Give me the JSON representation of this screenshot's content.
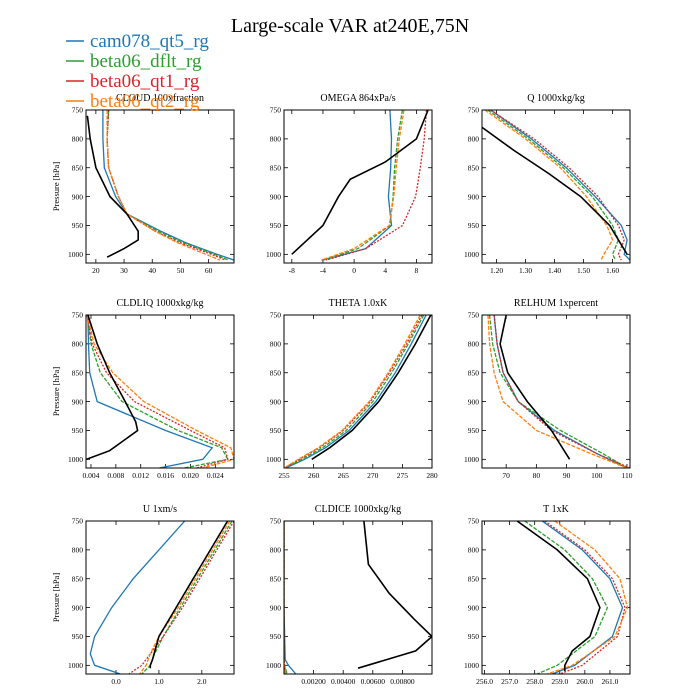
{
  "figure_title": "Large-scale VAR at240E,75N",
  "legend": [
    {
      "name": "cam078_qt5_rg",
      "color": "#1f77b4",
      "dash": ""
    },
    {
      "name": "beta06_dflt_rg",
      "color": "#2ca02c",
      "dash": "4,1.5"
    },
    {
      "name": "beta06_qt1_rg",
      "color": "#d62728",
      "dash": "2,1.5"
    },
    {
      "name": "beta06_qt2_rg",
      "color": "#ff7f0e",
      "dash": "4,1.5"
    }
  ],
  "reference_line": {
    "color": "#000000"
  },
  "chart_data": [
    {
      "type": "line",
      "title": "CLOUD 100xfraction",
      "ylabel": "Pressure [hPa]",
      "xlim": [
        16.5,
        69
      ],
      "ylim": [
        750,
        1015
      ],
      "xticks": [
        20,
        30,
        40,
        50,
        60
      ],
      "xticklabels": [
        "20",
        "30",
        "40",
        "50",
        "60"
      ],
      "yticks": [
        750,
        800,
        850,
        900,
        950,
        1000
      ],
      "y": [
        750,
        800,
        850,
        900,
        930,
        960,
        980,
        1000,
        1010
      ],
      "series": [
        {
          "values": [
            22.5,
            22.5,
            23,
            27,
            31,
            43,
            52,
            63,
            69
          ]
        },
        {
          "values": [
            24.5,
            24,
            24.5,
            28,
            31,
            42,
            51,
            62,
            67
          ]
        },
        {
          "values": [
            24.5,
            24,
            24.5,
            28,
            31,
            41,
            50,
            61,
            66
          ]
        },
        {
          "values": [
            24,
            24,
            24.5,
            28,
            31,
            41,
            49,
            59,
            64
          ]
        }
      ],
      "reference": {
        "y": [
          760,
          800,
          850,
          900,
          930,
          960,
          975,
          990,
          1005
        ],
        "values": [
          17,
          18,
          20,
          25,
          31,
          35,
          35,
          30,
          24
        ]
      }
    },
    {
      "type": "line",
      "title": "OMEGA 864xPa/s",
      "ylabel": "",
      "xlim": [
        -9,
        10
      ],
      "ylim": [
        750,
        1015
      ],
      "xticks": [
        -8,
        -4,
        0,
        4,
        8
      ],
      "xticklabels": [
        "-8",
        "-4",
        "0",
        "4",
        "8"
      ],
      "yticks": [
        750,
        800,
        850,
        900,
        950,
        1000
      ],
      "y": [
        750,
        800,
        850,
        900,
        950,
        990,
        1010
      ],
      "series": [
        {
          "values": [
            4.6,
            4.8,
            4.7,
            4.4,
            4.8,
            1.5,
            -4
          ]
        },
        {
          "values": [
            6.2,
            5.6,
            5.2,
            5.0,
            4.6,
            0.5,
            -4
          ]
        },
        {
          "values": [
            9.3,
            9.0,
            8.5,
            7.9,
            6.2,
            1.5,
            -3.6
          ]
        },
        {
          "values": [
            6.4,
            5.8,
            5.4,
            5.1,
            4.5,
            0,
            -4.2
          ]
        }
      ],
      "reference": {
        "y": [
          750,
          800,
          840,
          870,
          900,
          950,
          1000
        ],
        "values": [
          9.5,
          8,
          4,
          -0.5,
          -2,
          -4,
          -8
        ]
      }
    },
    {
      "type": "line",
      "title": "Q 1000xkg/kg",
      "ylabel": "",
      "xlim": [
        1.15,
        1.66
      ],
      "ylim": [
        750,
        1015
      ],
      "xticks": [
        1.2,
        1.3,
        1.4,
        1.5,
        1.6
      ],
      "xticklabels": [
        "1.20",
        "1.30",
        "1.40",
        "1.50",
        "1.60"
      ],
      "yticks": [
        750,
        800,
        850,
        900,
        950,
        1000
      ],
      "y": [
        750,
        800,
        850,
        900,
        950,
        975,
        1000,
        1010
      ],
      "series": [
        {
          "values": [
            1.18,
            1.32,
            1.44,
            1.54,
            1.63,
            1.65,
            1.64,
            1.66
          ]
        },
        {
          "values": [
            1.17,
            1.31,
            1.43,
            1.53,
            1.6,
            1.62,
            1.6,
            1.61
          ]
        },
        {
          "values": [
            1.18,
            1.33,
            1.45,
            1.55,
            1.62,
            1.64,
            1.62,
            1.63
          ]
        },
        {
          "values": [
            1.16,
            1.3,
            1.42,
            1.51,
            1.58,
            1.6,
            1.57,
            1.56
          ]
        }
      ],
      "reference": {
        "y": [
          780,
          820,
          860,
          900,
          950,
          1000
        ],
        "values": [
          1.15,
          1.26,
          1.38,
          1.49,
          1.59,
          1.65
        ]
      }
    },
    {
      "type": "line",
      "title": "CLDLIQ 1000xkg/kg",
      "ylabel": "Pressure [hPa]",
      "xlim": [
        0.0032,
        0.027
      ],
      "ylim": [
        750,
        1015
      ],
      "xticks": [
        0.004,
        0.008,
        0.012,
        0.016,
        0.02,
        0.024
      ],
      "xticklabels": [
        "0.004",
        "0.008",
        "0.012",
        "0.016",
        "0.020",
        "0.024"
      ],
      "yticks": [
        750,
        800,
        850,
        900,
        950,
        1000
      ],
      "y": [
        750,
        800,
        850,
        900,
        950,
        980,
        1000,
        1015
      ],
      "series": [
        {
          "values": [
            0.0035,
            0.0036,
            0.0038,
            0.005,
            0.016,
            0.0235,
            0.022,
            0.015
          ]
        },
        {
          "values": [
            0.0034,
            0.004,
            0.0055,
            0.009,
            0.018,
            0.025,
            0.026,
            0.019
          ]
        },
        {
          "values": [
            0.0034,
            0.0042,
            0.0065,
            0.011,
            0.02,
            0.0255,
            0.026,
            0.021
          ]
        },
        {
          "values": [
            0.0034,
            0.0045,
            0.0075,
            0.0125,
            0.021,
            0.0265,
            0.027,
            0.022
          ]
        }
      ],
      "reference": {
        "y": [
          750,
          800,
          850,
          900,
          935,
          950,
          985,
          1000
        ],
        "values": [
          0.0035,
          0.005,
          0.007,
          0.0095,
          0.0112,
          0.0115,
          0.007,
          0.0033
        ]
      }
    },
    {
      "type": "line",
      "title": "THETA 1.0xK",
      "ylabel": "",
      "xlim": [
        255,
        280
      ],
      "ylim": [
        750,
        1015
      ],
      "xticks": [
        255,
        260,
        265,
        270,
        275,
        280
      ],
      "xticklabels": [
        "255",
        "260",
        "265",
        "270",
        "275",
        "280"
      ],
      "yticks": [
        750,
        800,
        850,
        900,
        950,
        1000
      ],
      "y": [
        750,
        800,
        850,
        900,
        950,
        980,
        1000,
        1015
      ],
      "series": [
        {
          "values": [
            279,
            276.5,
            273.8,
            270.5,
            266,
            262,
            258.5,
            255.3
          ]
        },
        {
          "values": [
            278.6,
            276,
            273.2,
            270,
            265.5,
            261.5,
            258,
            255.2
          ]
        },
        {
          "values": [
            278.3,
            275.7,
            272.8,
            269.6,
            265,
            261,
            257.6,
            255.1
          ]
        },
        {
          "values": [
            278,
            275.4,
            272.6,
            269.4,
            264.8,
            260.8,
            257.4,
            255
          ]
        }
      ],
      "reference": {
        "y": [
          750,
          800,
          850,
          900,
          950,
          980,
          1000
        ],
        "values": [
          279.8,
          277.2,
          274.3,
          271,
          266.5,
          262.7,
          259.7
        ]
      }
    },
    {
      "type": "line",
      "title": "RELHUM 1xpercent",
      "ylabel": "",
      "xlim": [
        62,
        111
      ],
      "ylim": [
        750,
        1015
      ],
      "xticks": [
        70,
        80,
        90,
        100,
        110
      ],
      "xticklabels": [
        "70",
        "80",
        "90",
        "100",
        "110"
      ],
      "yticks": [
        750,
        800,
        850,
        900,
        950,
        1000
      ],
      "y": [
        750,
        800,
        850,
        900,
        950,
        990,
        1015
      ],
      "series": [
        {
          "values": [
            66,
            67,
            69,
            74,
            86,
            100,
            110
          ]
        },
        {
          "values": [
            64.5,
            65.5,
            68,
            74,
            88,
            102,
            110
          ]
        },
        {
          "values": [
            66,
            67,
            69,
            74,
            85,
            100,
            111
          ]
        },
        {
          "values": [
            64,
            64.5,
            66,
            69,
            80,
            98,
            110
          ]
        }
      ],
      "reference": {
        "y": [
          750,
          800,
          850,
          900,
          950,
          1000
        ],
        "values": [
          70,
          68,
          70.5,
          77,
          85,
          91
        ]
      }
    },
    {
      "type": "line",
      "title": "U 1xm/s",
      "ylabel": "Pressure [hPa]",
      "xlim": [
        -0.7,
        2.75
      ],
      "ylim": [
        750,
        1015
      ],
      "xticks": [
        0,
        1,
        2
      ],
      "xticklabels": [
        "0.0",
        "1.0",
        "2.0"
      ],
      "yticks": [
        750,
        800,
        850,
        900,
        950,
        1000
      ],
      "y": [
        750,
        800,
        850,
        900,
        950,
        980,
        1000,
        1015
      ],
      "series": [
        {
          "values": [
            1.6,
            1.0,
            0.4,
            -0.1,
            -0.5,
            -0.6,
            -0.5,
            0.1
          ]
        },
        {
          "values": [
            2.7,
            2.3,
            1.9,
            1.5,
            1.1,
            0.9,
            0.8,
            0.6
          ]
        },
        {
          "values": [
            2.75,
            2.35,
            1.95,
            1.55,
            1.1,
            0.8,
            0.6,
            0.3
          ]
        },
        {
          "values": [
            2.65,
            2.25,
            1.85,
            1.45,
            1.0,
            0.8,
            0.7,
            0.55
          ]
        }
      ],
      "reference": {
        "y": [
          750,
          800,
          850,
          900,
          950,
          990,
          1000,
          1005
        ],
        "values": [
          2.6,
          2.2,
          1.8,
          1.4,
          1.0,
          0.85,
          0.8,
          0.8
        ]
      }
    },
    {
      "type": "line",
      "title": "CLDICE 1000xkg/kg",
      "ylabel": "",
      "xlim": [
        0,
        0.01
      ],
      "ylim": [
        750,
        1015
      ],
      "xticks": [
        0.002,
        0.004,
        0.006,
        0.008
      ],
      "xticklabels": [
        "0.00200",
        "0.00400",
        "0.00600",
        "0.00800"
      ],
      "yticks": [
        750,
        800,
        850,
        900,
        950,
        1000
      ],
      "y": [
        750,
        900,
        990,
        1000,
        1015
      ],
      "series": [
        {
          "values": [
            0,
            0,
            8e-05,
            0.0003,
            0.0008
          ]
        },
        {
          "values": [
            0,
            0,
            0,
            5e-05,
            0.0002
          ]
        },
        {
          "values": [
            0,
            0,
            0,
            4e-05,
            0.0001
          ]
        },
        {
          "values": [
            0,
            0,
            0,
            4e-05,
            0.0001
          ]
        }
      ],
      "reference": {
        "y": [
          750,
          825,
          875,
          920,
          950,
          975,
          1005
        ],
        "values": [
          0.0054,
          0.0057,
          0.0071,
          0.0088,
          0.01,
          0.0089,
          0.005
        ]
      }
    },
    {
      "type": "line",
      "title": "T 1xK",
      "ylabel": "",
      "xlim": [
        255.9,
        261.8
      ],
      "ylim": [
        750,
        1015
      ],
      "xticks": [
        256,
        257,
        258,
        259,
        260,
        261
      ],
      "xticklabels": [
        "256.0",
        "257.0",
        "258.0",
        "259.0",
        "260.0",
        "261.0"
      ],
      "yticks": [
        750,
        800,
        850,
        900,
        950,
        1000
      ],
      "y": [
        750,
        800,
        850,
        900,
        950,
        1000,
        1015
      ],
      "series": [
        {
          "values": [
            258.3,
            259.9,
            261.0,
            261.5,
            261.1,
            259.6,
            258.7
          ]
        },
        {
          "values": [
            257.6,
            259.2,
            260.3,
            260.9,
            260.4,
            258.9,
            258.1
          ]
        },
        {
          "values": [
            258.4,
            260.0,
            261.1,
            261.6,
            261.3,
            259.9,
            259.0
          ]
        },
        {
          "values": [
            258.8,
            260.4,
            261.4,
            261.7,
            261.2,
            259.5,
            258.5
          ]
        }
      ],
      "reference": {
        "y": [
          750,
          800,
          850,
          900,
          950,
          975,
          1000,
          1010
        ],
        "values": [
          257.3,
          258.9,
          260.1,
          260.6,
          260.2,
          259.5,
          259.2,
          259.2
        ]
      }
    }
  ]
}
